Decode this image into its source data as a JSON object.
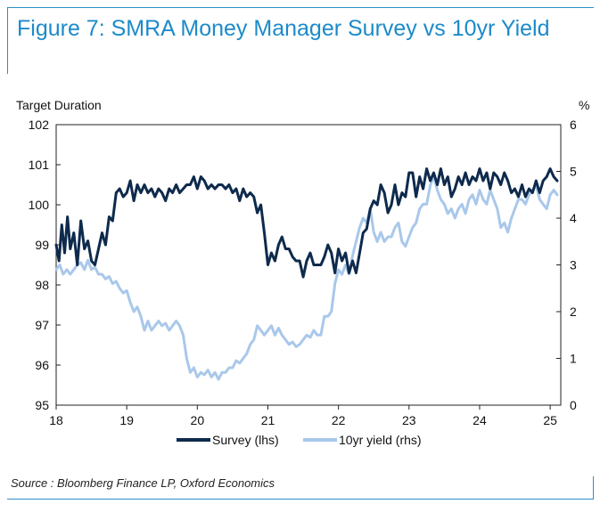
{
  "title": "Figure 7: SMRA Money Manager Survey vs 10yr Yield",
  "source": "Source : Bloomberg Finance LP, Oxford Economics",
  "colors": {
    "title": "#1c8ac9",
    "survey": "#0e2a4c",
    "yield": "#a9c8ea",
    "frame": "#2b8fc9"
  },
  "chart_data": {
    "type": "line",
    "ylabel_left": "Target Duration",
    "ylabel_right": "%",
    "x_ticks": [
      "18",
      "19",
      "20",
      "21",
      "22",
      "23",
      "24",
      "25"
    ],
    "x_range": [
      2018,
      2025.15
    ],
    "y_left_ticks": [
      "95",
      "96",
      "97",
      "98",
      "99",
      "100",
      "101",
      "102"
    ],
    "y_left_range": [
      95,
      102
    ],
    "y_right_ticks": [
      "0",
      "1",
      "2",
      "3",
      "4",
      "5",
      "6"
    ],
    "y_right_range": [
      0,
      6
    ],
    "grid": false,
    "legend_position": "bottom",
    "series": [
      {
        "name": "Survey (lhs)",
        "axis": "left",
        "points": [
          [
            2018.0,
            99.0
          ],
          [
            2018.04,
            98.6
          ],
          [
            2018.08,
            99.5
          ],
          [
            2018.12,
            98.8
          ],
          [
            2018.16,
            99.7
          ],
          [
            2018.2,
            98.9
          ],
          [
            2018.25,
            99.3
          ],
          [
            2018.3,
            98.5
          ],
          [
            2018.35,
            99.6
          ],
          [
            2018.4,
            98.9
          ],
          [
            2018.45,
            99.1
          ],
          [
            2018.5,
            98.6
          ],
          [
            2018.55,
            98.5
          ],
          [
            2018.6,
            98.9
          ],
          [
            2018.65,
            99.3
          ],
          [
            2018.7,
            99.0
          ],
          [
            2018.75,
            99.7
          ],
          [
            2018.8,
            99.6
          ],
          [
            2018.85,
            100.3
          ],
          [
            2018.9,
            100.4
          ],
          [
            2018.95,
            100.2
          ],
          [
            2019.0,
            100.3
          ],
          [
            2019.05,
            100.6
          ],
          [
            2019.1,
            100.1
          ],
          [
            2019.15,
            100.5
          ],
          [
            2019.2,
            100.3
          ],
          [
            2019.25,
            100.5
          ],
          [
            2019.3,
            100.3
          ],
          [
            2019.35,
            100.4
          ],
          [
            2019.4,
            100.2
          ],
          [
            2019.45,
            100.4
          ],
          [
            2019.5,
            100.3
          ],
          [
            2019.55,
            100.1
          ],
          [
            2019.6,
            100.4
          ],
          [
            2019.65,
            100.3
          ],
          [
            2019.7,
            100.5
          ],
          [
            2019.75,
            100.3
          ],
          [
            2019.8,
            100.4
          ],
          [
            2019.85,
            100.5
          ],
          [
            2019.9,
            100.5
          ],
          [
            2019.95,
            100.7
          ],
          [
            2020.0,
            100.4
          ],
          [
            2020.05,
            100.7
          ],
          [
            2020.1,
            100.6
          ],
          [
            2020.15,
            100.4
          ],
          [
            2020.2,
            100.5
          ],
          [
            2020.25,
            100.4
          ],
          [
            2020.3,
            100.5
          ],
          [
            2020.35,
            100.5
          ],
          [
            2020.4,
            100.4
          ],
          [
            2020.45,
            100.5
          ],
          [
            2020.5,
            100.3
          ],
          [
            2020.55,
            100.4
          ],
          [
            2020.6,
            100.1
          ],
          [
            2020.65,
            100.4
          ],
          [
            2020.7,
            100.2
          ],
          [
            2020.75,
            100.3
          ],
          [
            2020.8,
            100.2
          ],
          [
            2020.85,
            99.8
          ],
          [
            2020.9,
            100.0
          ],
          [
            2020.95,
            99.3
          ],
          [
            2021.0,
            98.5
          ],
          [
            2021.05,
            98.8
          ],
          [
            2021.1,
            98.6
          ],
          [
            2021.15,
            99.0
          ],
          [
            2021.2,
            99.2
          ],
          [
            2021.25,
            98.9
          ],
          [
            2021.3,
            98.9
          ],
          [
            2021.35,
            98.7
          ],
          [
            2021.4,
            98.6
          ],
          [
            2021.45,
            98.6
          ],
          [
            2021.5,
            98.2
          ],
          [
            2021.55,
            98.6
          ],
          [
            2021.6,
            98.8
          ],
          [
            2021.65,
            98.5
          ],
          [
            2021.7,
            98.5
          ],
          [
            2021.75,
            98.5
          ],
          [
            2021.8,
            98.7
          ],
          [
            2021.85,
            99.0
          ],
          [
            2021.9,
            98.8
          ],
          [
            2021.95,
            98.3
          ],
          [
            2022.0,
            98.9
          ],
          [
            2022.05,
            98.6
          ],
          [
            2022.1,
            98.8
          ],
          [
            2022.15,
            98.3
          ],
          [
            2022.2,
            98.6
          ],
          [
            2022.25,
            98.3
          ],
          [
            2022.3,
            98.8
          ],
          [
            2022.35,
            99.3
          ],
          [
            2022.4,
            99.4
          ],
          [
            2022.45,
            99.9
          ],
          [
            2022.5,
            100.1
          ],
          [
            2022.55,
            100.0
          ],
          [
            2022.6,
            100.5
          ],
          [
            2022.65,
            100.3
          ],
          [
            2022.7,
            99.8
          ],
          [
            2022.75,
            100.0
          ],
          [
            2022.8,
            100.5
          ],
          [
            2022.85,
            100.0
          ],
          [
            2022.9,
            100.3
          ],
          [
            2022.95,
            100.2
          ],
          [
            2023.0,
            100.8
          ],
          [
            2023.05,
            100.8
          ],
          [
            2023.1,
            100.2
          ],
          [
            2023.15,
            100.7
          ],
          [
            2023.2,
            100.4
          ],
          [
            2023.25,
            100.9
          ],
          [
            2023.3,
            100.6
          ],
          [
            2023.35,
            100.8
          ],
          [
            2023.4,
            100.5
          ],
          [
            2023.45,
            100.9
          ],
          [
            2023.5,
            100.5
          ],
          [
            2023.55,
            100.7
          ],
          [
            2023.6,
            100.2
          ],
          [
            2023.65,
            100.4
          ],
          [
            2023.7,
            100.7
          ],
          [
            2023.75,
            100.5
          ],
          [
            2023.8,
            100.8
          ],
          [
            2023.85,
            100.5
          ],
          [
            2023.9,
            100.7
          ],
          [
            2023.95,
            100.6
          ],
          [
            2024.0,
            100.9
          ],
          [
            2024.05,
            100.6
          ],
          [
            2024.1,
            100.8
          ],
          [
            2024.15,
            100.4
          ],
          [
            2024.2,
            100.8
          ],
          [
            2024.25,
            100.7
          ],
          [
            2024.3,
            100.5
          ],
          [
            2024.35,
            100.8
          ],
          [
            2024.4,
            100.6
          ],
          [
            2024.45,
            100.3
          ],
          [
            2024.5,
            100.4
          ],
          [
            2024.55,
            100.2
          ],
          [
            2024.6,
            100.5
          ],
          [
            2024.65,
            100.2
          ],
          [
            2024.7,
            100.4
          ],
          [
            2024.75,
            100.3
          ],
          [
            2024.8,
            100.6
          ],
          [
            2024.85,
            100.3
          ],
          [
            2024.9,
            100.6
          ],
          [
            2024.95,
            100.7
          ],
          [
            2025.0,
            100.9
          ],
          [
            2025.05,
            100.7
          ],
          [
            2025.1,
            100.6
          ]
        ]
      },
      {
        "name": "10yr yield (rhs)",
        "axis": "right",
        "points": [
          [
            2018.0,
            2.9
          ],
          [
            2018.05,
            3.0
          ],
          [
            2018.1,
            2.8
          ],
          [
            2018.15,
            2.9
          ],
          [
            2018.2,
            2.8
          ],
          [
            2018.25,
            2.9
          ],
          [
            2018.3,
            3.0
          ],
          [
            2018.35,
            3.05
          ],
          [
            2018.4,
            2.9
          ],
          [
            2018.45,
            3.1
          ],
          [
            2018.5,
            2.9
          ],
          [
            2018.55,
            2.95
          ],
          [
            2018.6,
            2.8
          ],
          [
            2018.65,
            2.8
          ],
          [
            2018.7,
            2.7
          ],
          [
            2018.75,
            2.75
          ],
          [
            2018.8,
            2.6
          ],
          [
            2018.85,
            2.65
          ],
          [
            2018.9,
            2.5
          ],
          [
            2018.95,
            2.4
          ],
          [
            2019.0,
            2.45
          ],
          [
            2019.05,
            2.2
          ],
          [
            2019.1,
            2.0
          ],
          [
            2019.15,
            2.1
          ],
          [
            2019.2,
            1.9
          ],
          [
            2019.25,
            1.6
          ],
          [
            2019.3,
            1.8
          ],
          [
            2019.35,
            1.6
          ],
          [
            2019.4,
            1.7
          ],
          [
            2019.45,
            1.8
          ],
          [
            2019.5,
            1.7
          ],
          [
            2019.55,
            1.75
          ],
          [
            2019.6,
            1.6
          ],
          [
            2019.65,
            1.7
          ],
          [
            2019.7,
            1.8
          ],
          [
            2019.75,
            1.7
          ],
          [
            2019.8,
            1.5
          ],
          [
            2019.85,
            1.0
          ],
          [
            2019.9,
            0.7
          ],
          [
            2019.95,
            0.8
          ],
          [
            2020.0,
            0.6
          ],
          [
            2020.05,
            0.7
          ],
          [
            2020.1,
            0.65
          ],
          [
            2020.15,
            0.75
          ],
          [
            2020.2,
            0.6
          ],
          [
            2020.25,
            0.7
          ],
          [
            2020.3,
            0.55
          ],
          [
            2020.35,
            0.7
          ],
          [
            2020.4,
            0.7
          ],
          [
            2020.45,
            0.8
          ],
          [
            2020.5,
            0.8
          ],
          [
            2020.55,
            0.95
          ],
          [
            2020.6,
            0.9
          ],
          [
            2020.65,
            1.0
          ],
          [
            2020.7,
            1.1
          ],
          [
            2020.75,
            1.3
          ],
          [
            2020.8,
            1.4
          ],
          [
            2020.85,
            1.7
          ],
          [
            2020.9,
            1.6
          ],
          [
            2020.95,
            1.5
          ],
          [
            2021.0,
            1.6
          ],
          [
            2021.05,
            1.7
          ],
          [
            2021.1,
            1.5
          ],
          [
            2021.15,
            1.65
          ],
          [
            2021.2,
            1.5
          ],
          [
            2021.25,
            1.4
          ],
          [
            2021.3,
            1.3
          ],
          [
            2021.35,
            1.35
          ],
          [
            2021.4,
            1.25
          ],
          [
            2021.45,
            1.3
          ],
          [
            2021.5,
            1.4
          ],
          [
            2021.55,
            1.5
          ],
          [
            2021.6,
            1.45
          ],
          [
            2021.65,
            1.6
          ],
          [
            2021.7,
            1.5
          ],
          [
            2021.75,
            1.5
          ],
          [
            2021.8,
            1.9
          ],
          [
            2021.85,
            1.9
          ],
          [
            2021.9,
            2.0
          ],
          [
            2021.95,
            2.6
          ],
          [
            2022.0,
            2.9
          ],
          [
            2022.05,
            2.8
          ],
          [
            2022.1,
            3.0
          ],
          [
            2022.15,
            2.8
          ],
          [
            2022.2,
            3.2
          ],
          [
            2022.25,
            3.5
          ],
          [
            2022.3,
            3.8
          ],
          [
            2022.35,
            4.0
          ],
          [
            2022.4,
            3.9
          ],
          [
            2022.45,
            4.2
          ],
          [
            2022.5,
            3.7
          ],
          [
            2022.55,
            3.5
          ],
          [
            2022.6,
            3.7
          ],
          [
            2022.65,
            3.5
          ],
          [
            2022.7,
            3.6
          ],
          [
            2022.75,
            3.6
          ],
          [
            2022.8,
            3.8
          ],
          [
            2022.85,
            3.9
          ],
          [
            2022.9,
            3.5
          ],
          [
            2022.95,
            3.4
          ],
          [
            2023.0,
            3.6
          ],
          [
            2023.05,
            3.8
          ],
          [
            2023.1,
            3.9
          ],
          [
            2023.15,
            4.2
          ],
          [
            2023.2,
            4.3
          ],
          [
            2023.25,
            4.3
          ],
          [
            2023.3,
            4.7
          ],
          [
            2023.35,
            4.9
          ],
          [
            2023.4,
            4.6
          ],
          [
            2023.45,
            4.4
          ],
          [
            2023.5,
            4.3
          ],
          [
            2023.55,
            4.1
          ],
          [
            2023.6,
            4.2
          ],
          [
            2023.65,
            4.0
          ],
          [
            2023.7,
            4.2
          ],
          [
            2023.75,
            4.3
          ],
          [
            2023.8,
            4.1
          ],
          [
            2023.85,
            4.4
          ],
          [
            2023.9,
            4.5
          ],
          [
            2023.95,
            4.3
          ],
          [
            2024.0,
            4.6
          ],
          [
            2024.05,
            4.4
          ],
          [
            2024.1,
            4.3
          ],
          [
            2024.15,
            4.6
          ],
          [
            2024.2,
            4.4
          ],
          [
            2024.25,
            4.2
          ],
          [
            2024.3,
            3.8
          ],
          [
            2024.35,
            3.9
          ],
          [
            2024.4,
            3.7
          ],
          [
            2024.45,
            4.0
          ],
          [
            2024.5,
            4.2
          ],
          [
            2024.55,
            4.4
          ],
          [
            2024.6,
            4.4
          ],
          [
            2024.65,
            4.3
          ],
          [
            2024.7,
            4.5
          ],
          [
            2024.75,
            4.6
          ],
          [
            2024.8,
            4.7
          ],
          [
            2024.85,
            4.4
          ],
          [
            2024.9,
            4.3
          ],
          [
            2024.95,
            4.2
          ],
          [
            2025.0,
            4.5
          ],
          [
            2025.05,
            4.6
          ],
          [
            2025.1,
            4.5
          ]
        ]
      }
    ]
  }
}
